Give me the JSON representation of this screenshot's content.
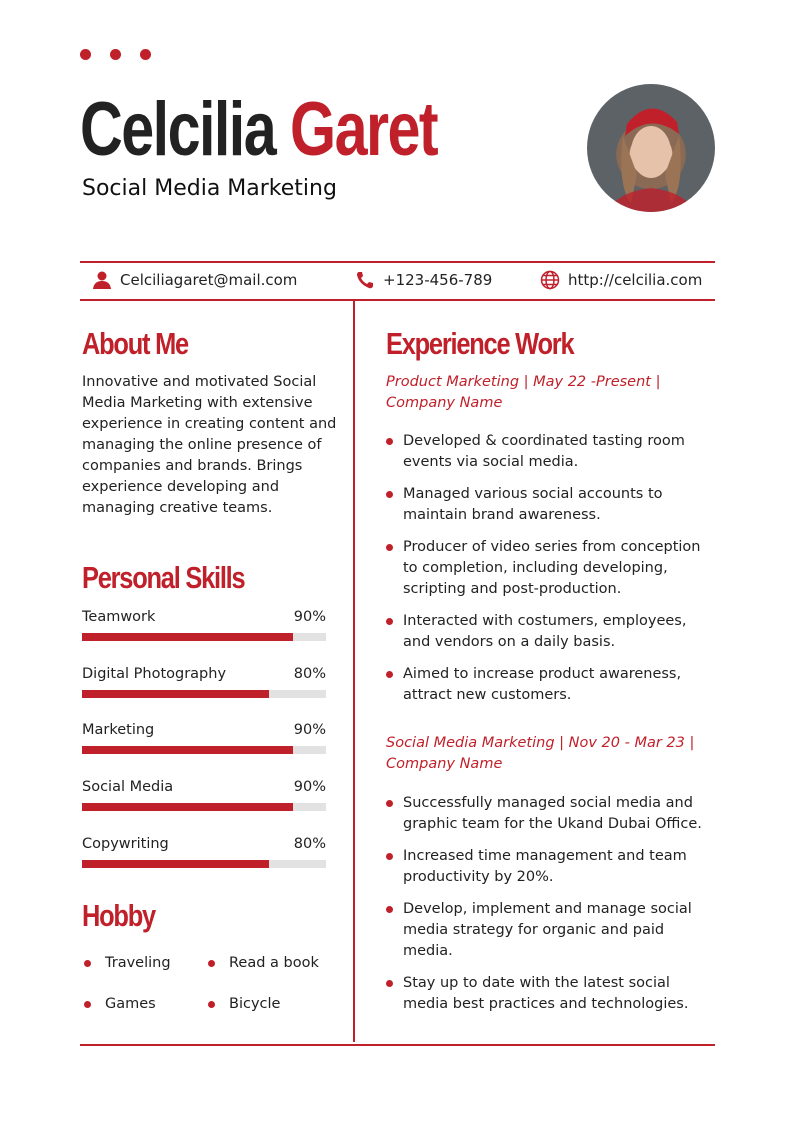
{
  "header": {
    "first_name": "Celcilia",
    "last_name": "Garet",
    "role": "Social Media Marketing"
  },
  "contact": {
    "email": "Celciliagaret@mail.com",
    "phone": "+123-456-789",
    "website": "http://celcilia.com"
  },
  "about": {
    "title": "About Me",
    "text": "Innovative and motivated Social Media Marketing with extensive experience in creating content and managing the online presence of companies and brands. Brings experience developing and managing creative teams."
  },
  "skills": {
    "title": "Personal Skills",
    "items": [
      {
        "label": "Teamwork",
        "percent": "90%",
        "value": 90
      },
      {
        "label": "Digital Photography",
        "percent": "80%",
        "value": 80
      },
      {
        "label": "Marketing",
        "percent": "90%",
        "value": 90
      },
      {
        "label": "Social Media",
        "percent": "90%",
        "value": 90
      },
      {
        "label": "Copywriting",
        "percent": "80%",
        "value": 80
      }
    ]
  },
  "hobby": {
    "title": "Hobby",
    "items": [
      "Traveling",
      "Read a book",
      "Games",
      "Bicycle"
    ]
  },
  "experience": {
    "title": "Experience Work",
    "jobs": [
      {
        "heading": "Product Marketing | May 22 -Present | Company Name",
        "bullets": [
          "Developed & coordinated tasting room events via social media.",
          "Managed various social accounts to maintain brand awareness.",
          "Producer of video series from conception to completion, including developing, scripting and post-production.",
          "Interacted with costumers, employees, and vendors on a daily basis.",
          "Aimed to increase product awareness, attract new customers."
        ]
      },
      {
        "heading": "Social Media Marketing | Nov 20 - Mar 23 | Company Name",
        "bullets": [
          "Successfully managed social media and graphic team for the Ukand Dubai Office.",
          "Increased time management and team productivity by 20%.",
          "Develop, implement and manage social media strategy for organic and paid media.",
          "Stay up to date with the latest social media best practices and technologies."
        ]
      }
    ]
  },
  "colors": {
    "accent": "#c0202a"
  }
}
